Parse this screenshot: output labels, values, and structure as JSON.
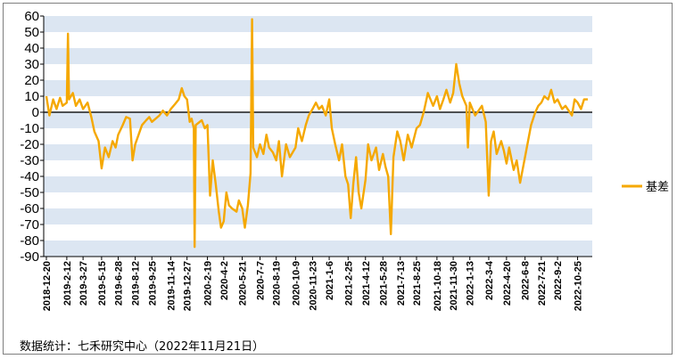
{
  "chart_data": {
    "type": "line",
    "title": "",
    "xlabel": "",
    "ylabel": "",
    "ylim": [
      -90,
      60
    ],
    "yticks": [
      60,
      50,
      40,
      30,
      20,
      10,
      0,
      -10,
      -20,
      -30,
      -40,
      -50,
      -60,
      -70,
      -80,
      -90
    ],
    "x_tick_labels": [
      "2018-12-20",
      "2019-2-12",
      "2019-3-27",
      "2019-5-15",
      "2019-6-28",
      "2019-8-12",
      "2019-9-25",
      "2019-11-14",
      "2019-12-27",
      "2020-2-19",
      "2020-4-2",
      "2020-5-21",
      "2020-7-7",
      "2020-8-19",
      "2020-10-9",
      "2020-11-23",
      "2021-1-6",
      "2021-2-25",
      "2021-4-12",
      "2021-5-28",
      "2021-7-13",
      "2021-8-25",
      "2021-10-18",
      "2021-11-30",
      "2022-1-13",
      "2022-3-4",
      "2022-4-20",
      "2022-6-8",
      "2022-7-21",
      "2022-9-2",
      "2022-10-25"
    ],
    "grid": "horizontal alternating bands",
    "legend_position": "right",
    "series": [
      {
        "name": "基差",
        "color": "#f5a800",
        "points": [
          [
            "2018-12-20",
            10
          ],
          [
            "2018-12-28",
            -2
          ],
          [
            "2019-1-7",
            8
          ],
          [
            "2019-1-16",
            2
          ],
          [
            "2019-1-25",
            9
          ],
          [
            "2019-2-1",
            4
          ],
          [
            "2019-2-12",
            6
          ],
          [
            "2019-2-15",
            49
          ],
          [
            "2019-2-18",
            8
          ],
          [
            "2019-2-28",
            12
          ],
          [
            "2019-3-8",
            4
          ],
          [
            "2019-3-18",
            8
          ],
          [
            "2019-3-27",
            2
          ],
          [
            "2019-4-8",
            6
          ],
          [
            "2019-4-18",
            -3
          ],
          [
            "2019-4-26",
            -12
          ],
          [
            "2019-5-7",
            -18
          ],
          [
            "2019-5-15",
            -35
          ],
          [
            "2019-5-24",
            -22
          ],
          [
            "2019-6-3",
            -28
          ],
          [
            "2019-6-13",
            -18
          ],
          [
            "2019-6-21",
            -22
          ],
          [
            "2019-6-28",
            -14
          ],
          [
            "2019-7-10",
            -8
          ],
          [
            "2019-7-19",
            -3
          ],
          [
            "2019-7-29",
            -4
          ],
          [
            "2019-8-5",
            -30
          ],
          [
            "2019-8-12",
            -20
          ],
          [
            "2019-8-21",
            -14
          ],
          [
            "2019-8-30",
            -8
          ],
          [
            "2019-9-10",
            -5
          ],
          [
            "2019-9-18",
            -3
          ],
          [
            "2019-9-25",
            -6
          ],
          [
            "2019-10-15",
            -2
          ],
          [
            "2019-10-24",
            1
          ],
          [
            "2019-11-4",
            -2
          ],
          [
            "2019-11-14",
            2
          ],
          [
            "2019-11-25",
            5
          ],
          [
            "2019-12-5",
            8
          ],
          [
            "2019-12-13",
            15
          ],
          [
            "2019-12-20",
            10
          ],
          [
            "2019-12-27",
            8
          ],
          [
            "2020-1-3",
            -6
          ],
          [
            "2020-1-8",
            -4
          ],
          [
            "2020-1-14",
            -10
          ],
          [
            "2020-1-16",
            -84
          ],
          [
            "2020-1-19",
            -8
          ],
          [
            "2020-2-4",
            -5
          ],
          [
            "2020-2-12",
            -10
          ],
          [
            "2020-2-19",
            -8
          ],
          [
            "2020-2-26",
            -52
          ],
          [
            "2020-3-4",
            -30
          ],
          [
            "2020-3-12",
            -45
          ],
          [
            "2020-3-20",
            -62
          ],
          [
            "2020-3-26",
            -72
          ],
          [
            "2020-4-2",
            -68
          ],
          [
            "2020-4-9",
            -50
          ],
          [
            "2020-4-16",
            -58
          ],
          [
            "2020-4-24",
            -60
          ],
          [
            "2020-5-6",
            -62
          ],
          [
            "2020-5-12",
            -55
          ],
          [
            "2020-5-21",
            -60
          ],
          [
            "2020-5-28",
            -72
          ],
          [
            "2020-6-5",
            -58
          ],
          [
            "2020-6-12",
            -38
          ],
          [
            "2020-6-16",
            58
          ],
          [
            "2020-6-19",
            -22
          ],
          [
            "2020-6-29",
            -28
          ],
          [
            "2020-7-7",
            -20
          ],
          [
            "2020-7-16",
            -26
          ],
          [
            "2020-7-24",
            -14
          ],
          [
            "2020-7-31",
            -22
          ],
          [
            "2020-8-10",
            -25
          ],
          [
            "2020-8-19",
            -30
          ],
          [
            "2020-8-26",
            -18
          ],
          [
            "2020-9-3",
            -40
          ],
          [
            "2020-9-14",
            -20
          ],
          [
            "2020-9-24",
            -28
          ],
          [
            "2020-10-9",
            -22
          ],
          [
            "2020-10-16",
            -10
          ],
          [
            "2020-10-26",
            -18
          ],
          [
            "2020-11-5",
            -8
          ],
          [
            "2020-11-13",
            -2
          ],
          [
            "2020-11-23",
            2
          ],
          [
            "2020-12-2",
            6
          ],
          [
            "2020-12-10",
            2
          ],
          [
            "2020-12-18",
            4
          ],
          [
            "2020-12-28",
            -2
          ],
          [
            "2021-1-6",
            8
          ],
          [
            "2021-1-13",
            -10
          ],
          [
            "2021-1-22",
            -20
          ],
          [
            "2021-2-1",
            -30
          ],
          [
            "2021-2-9",
            -20
          ],
          [
            "2021-2-18",
            -40
          ],
          [
            "2021-2-25",
            -45
          ],
          [
            "2021-3-4",
            -66
          ],
          [
            "2021-3-11",
            -44
          ],
          [
            "2021-3-18",
            -28
          ],
          [
            "2021-3-25",
            -50
          ],
          [
            "2021-4-1",
            -60
          ],
          [
            "2021-4-12",
            -42
          ],
          [
            "2021-4-19",
            -20
          ],
          [
            "2021-4-28",
            -30
          ],
          [
            "2021-5-10",
            -22
          ],
          [
            "2021-5-18",
            -36
          ],
          [
            "2021-5-28",
            -26
          ],
          [
            "2021-6-4",
            -34
          ],
          [
            "2021-6-11",
            -40
          ],
          [
            "2021-6-18",
            -76
          ],
          [
            "2021-6-25",
            -28
          ],
          [
            "2021-7-5",
            -12
          ],
          [
            "2021-7-13",
            -18
          ],
          [
            "2021-7-22",
            -30
          ],
          [
            "2021-8-2",
            -14
          ],
          [
            "2021-8-12",
            -22
          ],
          [
            "2021-8-25",
            -10
          ],
          [
            "2021-9-3",
            -8
          ],
          [
            "2021-9-13",
            0
          ],
          [
            "2021-9-24",
            12
          ],
          [
            "2021-10-8",
            4
          ],
          [
            "2021-10-18",
            10
          ],
          [
            "2021-10-26",
            2
          ],
          [
            "2021-11-4",
            8
          ],
          [
            "2021-11-12",
            14
          ],
          [
            "2021-11-22",
            6
          ],
          [
            "2021-11-30",
            12
          ],
          [
            "2021-12-8",
            30
          ],
          [
            "2021-12-16",
            18
          ],
          [
            "2021-12-24",
            10
          ],
          [
            "2022-1-4",
            4
          ],
          [
            "2022-1-8",
            -22
          ],
          [
            "2022-1-13",
            6
          ],
          [
            "2022-1-20",
            2
          ],
          [
            "2022-1-27",
            -2
          ],
          [
            "2022-2-14",
            4
          ],
          [
            "2022-2-24",
            -6
          ],
          [
            "2022-3-4",
            -52
          ],
          [
            "2022-3-10",
            -18
          ],
          [
            "2022-3-17",
            -12
          ],
          [
            "2022-3-25",
            -26
          ],
          [
            "2022-4-6",
            -18
          ],
          [
            "2022-4-13",
            -24
          ],
          [
            "2022-4-20",
            -32
          ],
          [
            "2022-4-27",
            -22
          ],
          [
            "2022-5-9",
            -36
          ],
          [
            "2022-5-17",
            -30
          ],
          [
            "2022-5-26",
            -44
          ],
          [
            "2022-6-8",
            -28
          ],
          [
            "2022-6-16",
            -18
          ],
          [
            "2022-6-24",
            -8
          ],
          [
            "2022-7-5",
            0
          ],
          [
            "2022-7-13",
            4
          ],
          [
            "2022-7-21",
            6
          ],
          [
            "2022-7-29",
            10
          ],
          [
            "2022-8-8",
            8
          ],
          [
            "2022-8-16",
            14
          ],
          [
            "2022-8-25",
            6
          ],
          [
            "2022-9-2",
            8
          ],
          [
            "2022-9-14",
            2
          ],
          [
            "2022-9-23",
            4
          ],
          [
            "2022-10-10",
            -2
          ],
          [
            "2022-10-17",
            8
          ],
          [
            "2022-10-25",
            6
          ],
          [
            "2022-11-3",
            2
          ],
          [
            "2022-11-11",
            8
          ],
          [
            "2022-11-21",
            8
          ]
        ]
      }
    ]
  },
  "footer": {
    "source": "数据统计：七禾研究中心（2022年11月21日）"
  }
}
